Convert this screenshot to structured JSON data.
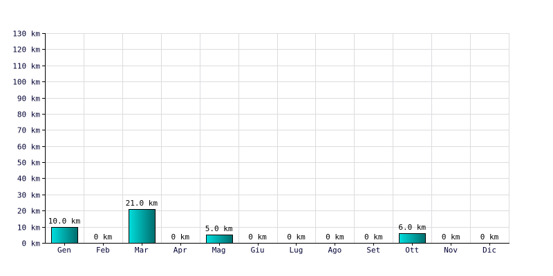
{
  "chart_data": {
    "type": "bar",
    "categories": [
      "Gen",
      "Feb",
      "Mar",
      "Apr",
      "Mag",
      "Giu",
      "Lug",
      "Ago",
      "Set",
      "Ott",
      "Nov",
      "Dic"
    ],
    "values": [
      10.0,
      0,
      21.0,
      0,
      5.0,
      0,
      0,
      0,
      0,
      6.0,
      0,
      0
    ],
    "data_labels": [
      "10.0 km",
      "0 km",
      "21.0 km",
      "0 km",
      "5.0 km",
      "0 km",
      "0 km",
      "0 km",
      "0 km",
      "6.0 km",
      "0 km",
      "0 km"
    ],
    "y_ticks": [
      0,
      10,
      20,
      30,
      40,
      50,
      60,
      70,
      80,
      90,
      100,
      110,
      120,
      130
    ],
    "y_tick_labels": [
      "0 km",
      "10 km",
      "20 km",
      "30 km",
      "40 km",
      "50 km",
      "60 km",
      "70 km",
      "80 km",
      "90 km",
      "100 km",
      "110 km",
      "120 km",
      "130 km"
    ],
    "ylim": [
      0,
      130
    ],
    "title": "",
    "xlabel": "",
    "ylabel": "",
    "grid": true,
    "legend": "none",
    "colors": {
      "bar_gradient_start": "#00dede",
      "bar_gradient_end": "#006c6c",
      "grid": "#dcdce0",
      "tick_text": "#000033"
    }
  }
}
